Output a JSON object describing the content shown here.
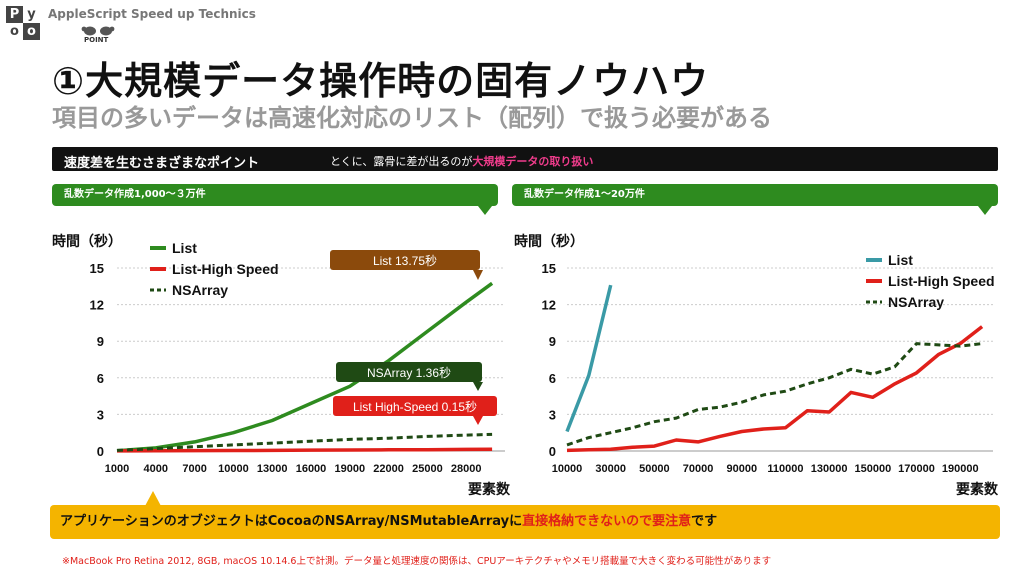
{
  "header": {
    "logo_letters": [
      "P",
      "y",
      "o",
      "o"
    ],
    "brand": "AppleScript Speed up Technics",
    "point_label": "POINT"
  },
  "title": "①大規模データ操作時の固有ノウハウ",
  "subtitle": "項目の多いデータは高速化対応のリスト（配列）で扱う必要がある",
  "black_bar": {
    "left": "速度差を生むさまざまなポイント",
    "right_prefix": "とくに、露骨に差が出るのが",
    "right_highlight": "大規模データの取り扱い"
  },
  "panel_left_label": "乱数データ作成1,000〜３万件",
  "panel_right_label": "乱数データ作成1〜20万件",
  "callout": {
    "text_prefix": "アプリケーションのオブジェクトはCocoaのNSArray/NSMutableArrayに",
    "text_highlight": "直接格納できないので要注意",
    "text_suffix": "です"
  },
  "footnote": "※MacBook Pro Retina 2012, 8GB, macOS 10.14.6上で計測。データ量と処理速度の関係は、CPUアーキテクチャやメモリ搭載量で大きく変わる可能性があります",
  "colors": {
    "list_left": "#2e8b1f",
    "list_right": "#3a9aa6",
    "high_speed": "#e0201a",
    "nsarray": "#1f4a14",
    "accent_green": "#2e8b1f",
    "accent_yellow": "#f4b400",
    "highlight_pink": "#f03c8c",
    "label_brown": "#8b4a0c",
    "label_dark_green": "#1f4a14",
    "label_red": "#e0201a"
  },
  "chart_data": [
    {
      "type": "line",
      "ylabel": "時間（秒）",
      "xlabel": "要素数",
      "ylim": [
        0,
        15
      ],
      "xlim": [
        1000,
        31000
      ],
      "yticks": [
        0,
        3,
        6,
        9,
        12,
        15
      ],
      "xticks": [
        1000,
        4000,
        7000,
        10000,
        13000,
        16000,
        19000,
        22000,
        25000,
        28000
      ],
      "grid": true,
      "legend": "top-left",
      "series": [
        {
          "name": "List",
          "style": "solid",
          "color": "#2e8b1f",
          "x": [
            1000,
            4000,
            7000,
            10000,
            13000,
            16000,
            19000,
            22000,
            25000,
            28000,
            30000
          ],
          "y": [
            0.02,
            0.25,
            0.75,
            1.5,
            2.5,
            3.9,
            5.3,
            7.4,
            9.8,
            12.2,
            13.75
          ]
        },
        {
          "name": "List-High Speed",
          "style": "solid",
          "color": "#e0201a",
          "x": [
            1000,
            4000,
            7000,
            10000,
            13000,
            16000,
            19000,
            22000,
            25000,
            28000,
            30000
          ],
          "y": [
            0.01,
            0.02,
            0.03,
            0.04,
            0.05,
            0.07,
            0.08,
            0.1,
            0.11,
            0.13,
            0.15
          ]
        },
        {
          "name": "NSArray",
          "style": "dashed",
          "color": "#1f4a14",
          "x": [
            1000,
            4000,
            7000,
            10000,
            13000,
            16000,
            19000,
            22000,
            25000,
            28000,
            30000
          ],
          "y": [
            0.05,
            0.2,
            0.35,
            0.5,
            0.65,
            0.8,
            0.95,
            1.05,
            1.2,
            1.3,
            1.36
          ]
        }
      ],
      "annotations": [
        {
          "text": "List 13.75秒",
          "color": "#8b4a0c"
        },
        {
          "text": "NSArray 1.36秒",
          "color": "#1f4a14"
        },
        {
          "text": "List High-Speed 0.15秒",
          "color": "#e0201a"
        }
      ]
    },
    {
      "type": "line",
      "ylabel": "時間（秒）",
      "xlabel": "要素数",
      "ylim": [
        0,
        15
      ],
      "xlim": [
        10000,
        205000
      ],
      "yticks": [
        0,
        3,
        6,
        9,
        12,
        15
      ],
      "xticks": [
        10000,
        30000,
        50000,
        70000,
        90000,
        110000,
        130000,
        150000,
        170000,
        190000
      ],
      "grid": true,
      "legend": "top-right",
      "series": [
        {
          "name": "List",
          "style": "solid",
          "color": "#3a9aa6",
          "x": [
            10000,
            20000,
            30000
          ],
          "y": [
            1.6,
            6.2,
            13.6
          ]
        },
        {
          "name": "List-High Speed",
          "style": "solid",
          "color": "#e0201a",
          "x": [
            10000,
            20000,
            30000,
            40000,
            50000,
            60000,
            70000,
            80000,
            90000,
            100000,
            110000,
            120000,
            130000,
            140000,
            150000,
            160000,
            170000,
            180000,
            190000,
            200000
          ],
          "y": [
            0.05,
            0.1,
            0.15,
            0.3,
            0.4,
            0.9,
            0.75,
            1.2,
            1.6,
            1.8,
            1.9,
            3.3,
            3.2,
            4.8,
            4.4,
            5.5,
            6.4,
            7.9,
            8.8,
            10.2
          ]
        },
        {
          "name": "NSArray",
          "style": "dashed",
          "color": "#1f4a14",
          "x": [
            10000,
            20000,
            30000,
            40000,
            50000,
            60000,
            70000,
            80000,
            90000,
            100000,
            110000,
            120000,
            130000,
            140000,
            150000,
            160000,
            170000,
            180000,
            190000,
            200000
          ],
          "y": [
            0.5,
            1.1,
            1.5,
            1.9,
            2.4,
            2.7,
            3.4,
            3.6,
            4.0,
            4.6,
            4.9,
            5.5,
            6.0,
            6.7,
            6.3,
            6.9,
            8.8,
            8.7,
            8.6,
            8.8
          ]
        }
      ]
    }
  ]
}
